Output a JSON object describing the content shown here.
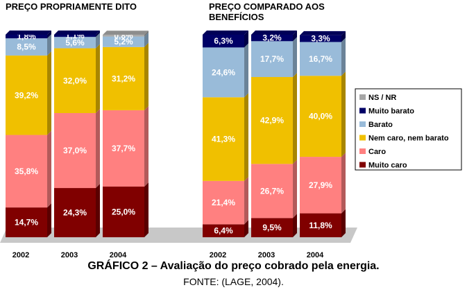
{
  "chart_data": {
    "type": "bar",
    "stacked": true,
    "panel_titles": [
      "PREÇO PROPRIAMENTE DITO",
      "PREÇO COMPARADO AOS BENEFÍCIOS"
    ],
    "categories": [
      "2002",
      "2003",
      "2004",
      "2002",
      "2003",
      "2004"
    ],
    "ylim": [
      0,
      100
    ],
    "series": [
      {
        "name": "Muito caro",
        "color": "#800000",
        "values": [
          14.7,
          24.3,
          25.0,
          6.4,
          9.5,
          11.8
        ],
        "value_labels": [
          "14,7%",
          "24,3%",
          "25,0%",
          "6,4%",
          "9,5%",
          "11,8%"
        ]
      },
      {
        "name": "Caro",
        "color": "#ff8080",
        "values": [
          35.8,
          37.0,
          37.7,
          21.4,
          26.7,
          27.9
        ],
        "value_labels": [
          "35,8%",
          "37,0%",
          "37,7%",
          "21,4%",
          "26,7%",
          "27,9%"
        ]
      },
      {
        "name": "Nem caro, nem barato",
        "color": "#f0c000",
        "values": [
          39.2,
          32.0,
          31.2,
          41.3,
          42.9,
          40.0
        ],
        "value_labels": [
          "39,2%",
          "32,0%",
          "31,2%",
          "41,3%",
          "42,9%",
          "40,0%"
        ]
      },
      {
        "name": "Barato",
        "color": "#99bbd9",
        "values": [
          8.5,
          5.6,
          5.2,
          24.6,
          17.7,
          16.7
        ],
        "value_labels": [
          "8,5%",
          "5,6%",
          "5,2%",
          "24,6%",
          "17,7%",
          "16,7%"
        ]
      },
      {
        "name": "Muito barato",
        "color": "#000066",
        "values": [
          1.8,
          1.1,
          null,
          6.3,
          3.2,
          3.3
        ],
        "value_labels": [
          "1,8%",
          "1,1%",
          null,
          "6,3%",
          "3,2%",
          "3,3%"
        ]
      },
      {
        "name": "NS / NR",
        "color": "#a6a6a6",
        "values": [
          null,
          null,
          0.8,
          null,
          null,
          null
        ],
        "value_labels": [
          null,
          null,
          "0,8%",
          null,
          null,
          null
        ]
      }
    ],
    "caption": "GRÁFICO 2 – Avaliação do preço cobrado pela energia.",
    "source": "FONTE: (LAGE, 2004)."
  }
}
